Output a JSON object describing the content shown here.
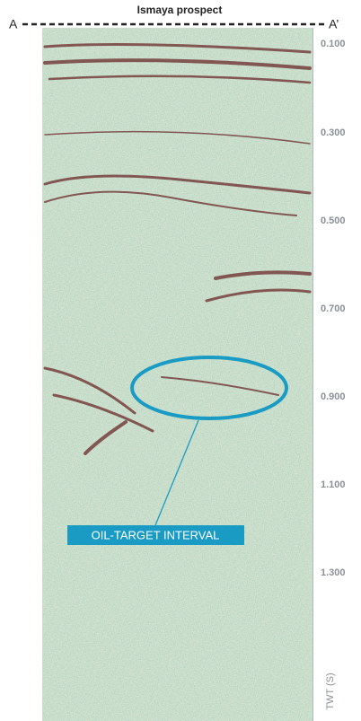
{
  "title": "Ismaya prospect",
  "section_start": "A",
  "section_end": "A’",
  "axis": {
    "label": "TWT (S)",
    "ticks": [
      "0.100",
      "0.300",
      "0.500",
      "0.700",
      "0.900",
      "1.100",
      "1.300"
    ]
  },
  "annotation": "OIL-TARGET INTERVAL"
}
